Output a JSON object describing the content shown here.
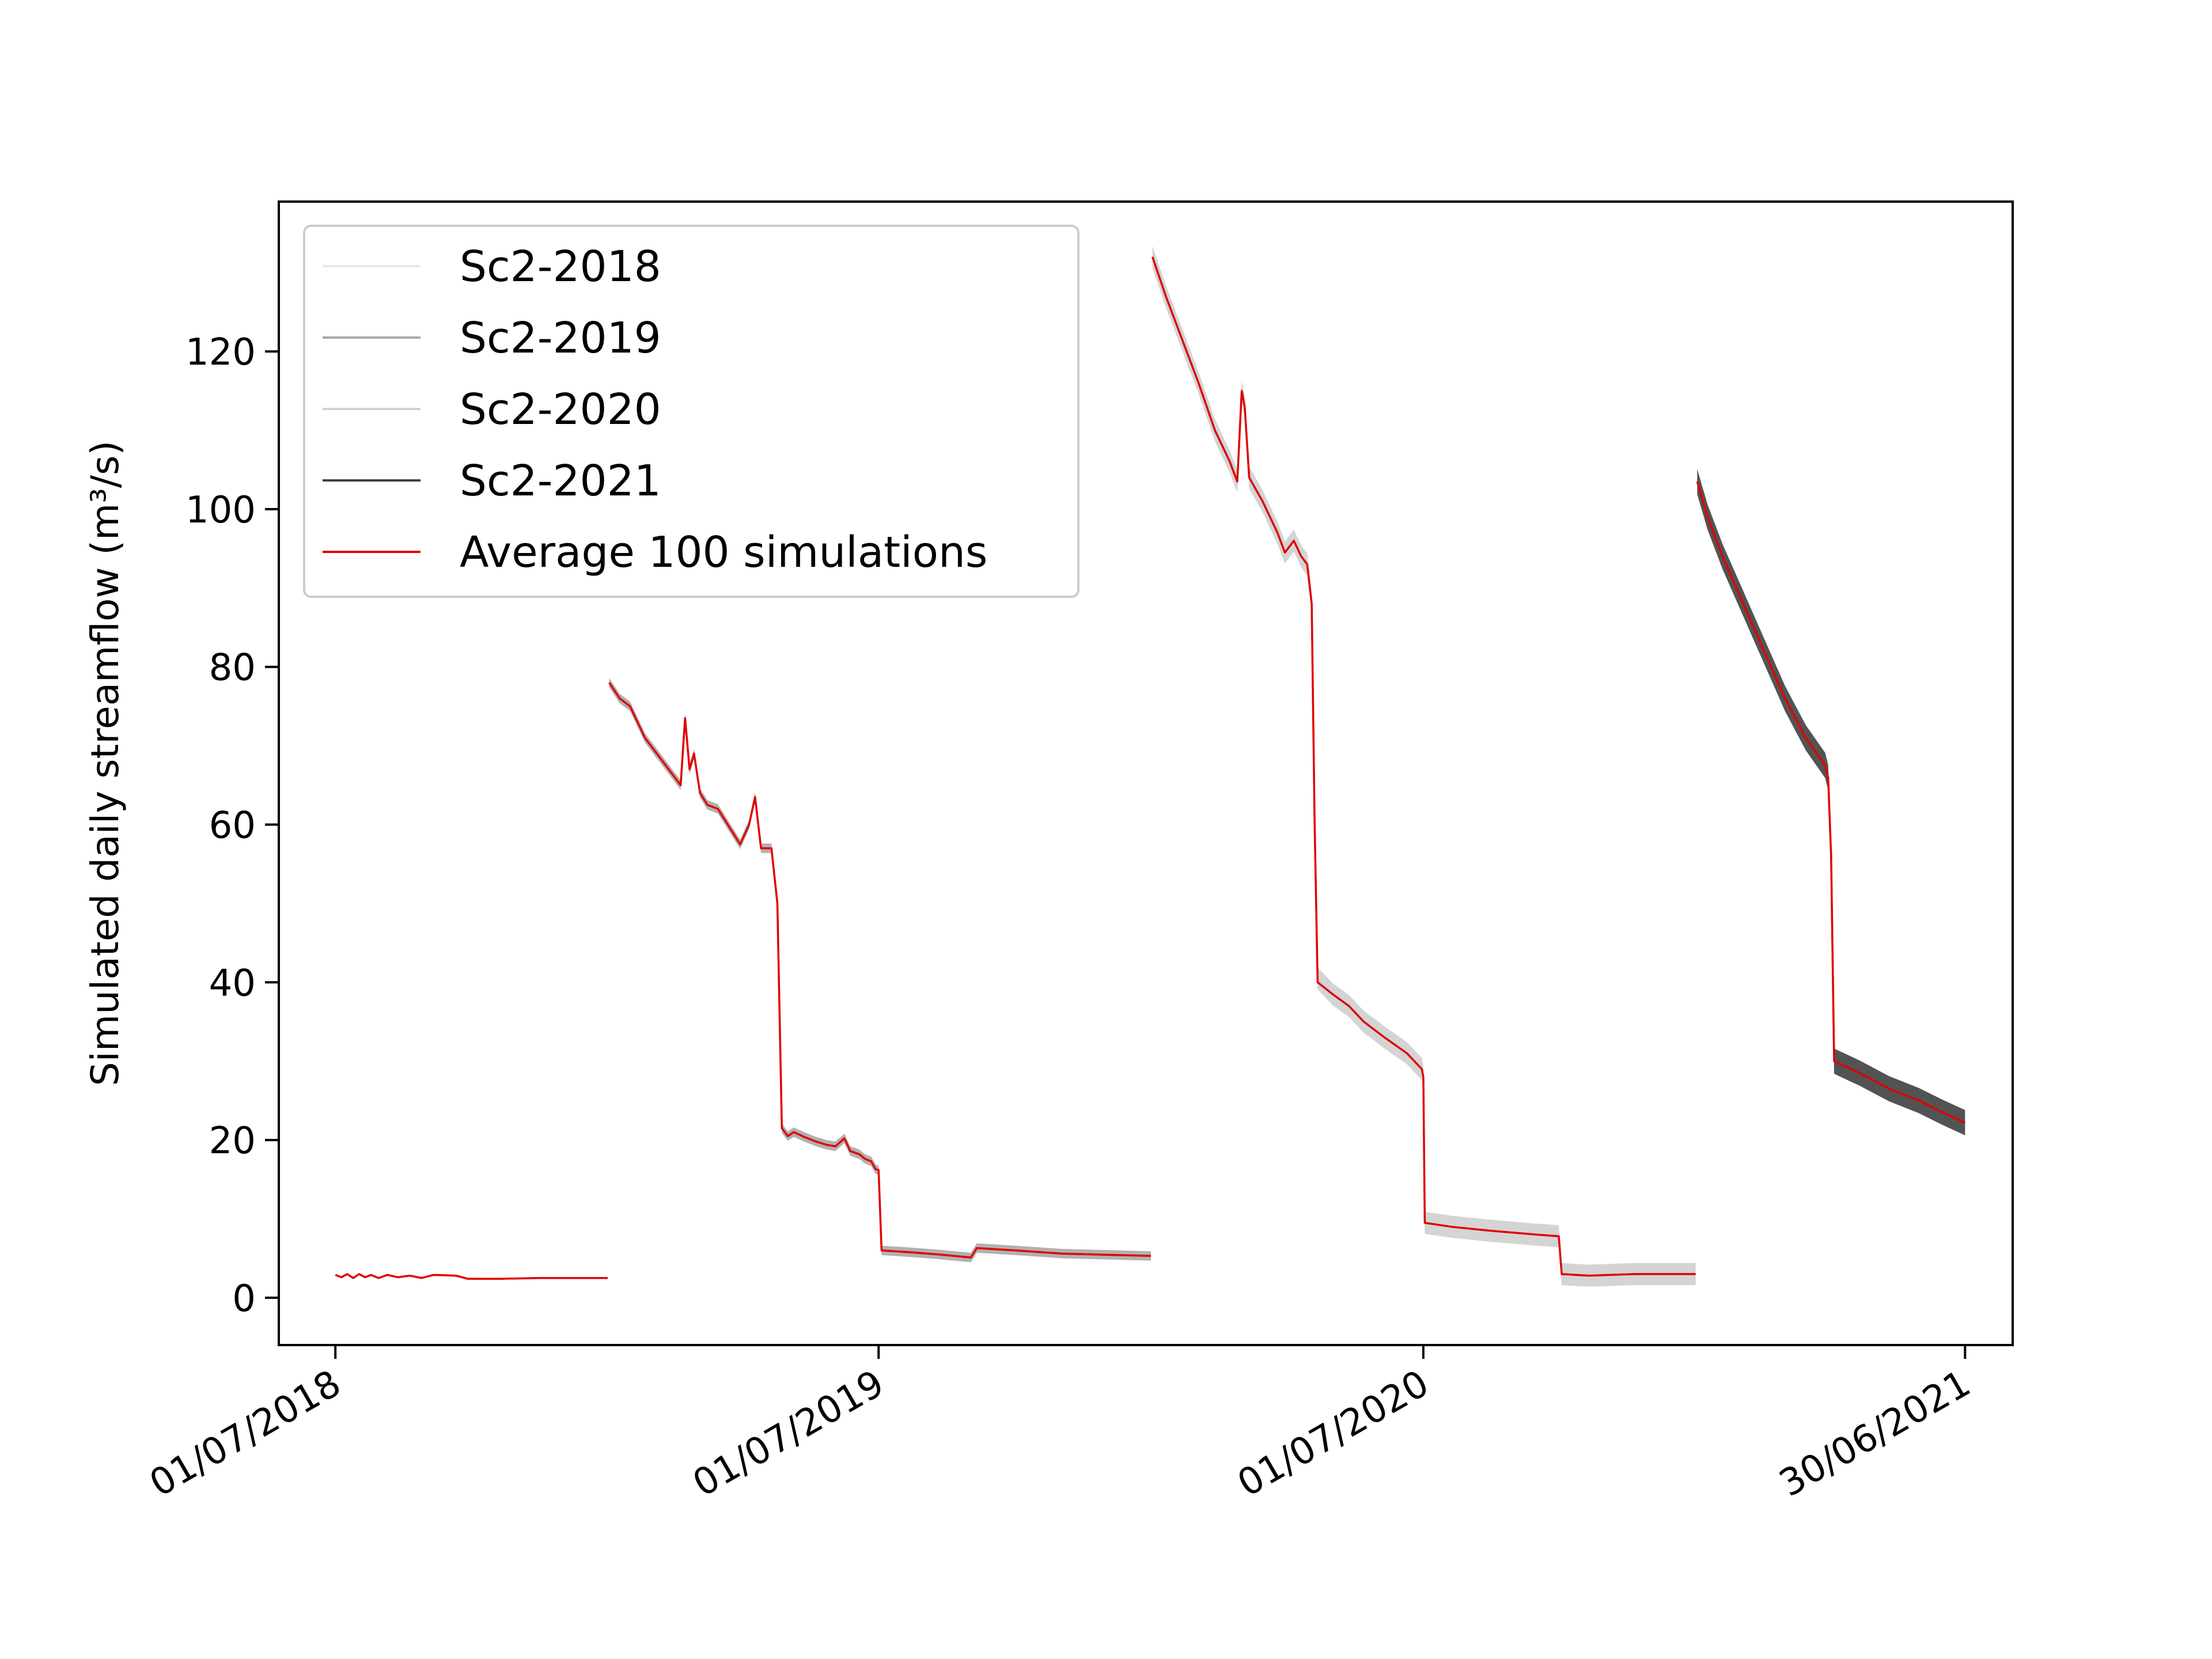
{
  "chart_data": {
    "type": "line",
    "title": "",
    "xlabel": "",
    "ylabel": "Simulated daily streamflow (m³/s)",
    "xlim": [
      "2018-05-24",
      "2021-08-01"
    ],
    "ylim": [
      -6,
      139
    ],
    "x_ticks": [
      {
        "date": "2018-07-01",
        "label": "01/07/2018"
      },
      {
        "date": "2019-07-01",
        "label": "01/07/2019"
      },
      {
        "date": "2020-07-01",
        "label": "01/07/2020"
      },
      {
        "date": "2021-06-30",
        "label": "30/06/2021"
      }
    ],
    "y_ticks": [
      0,
      20,
      40,
      60,
      80,
      100,
      120
    ],
    "grid": false,
    "legend": {
      "position": "top-left",
      "entries": [
        {
          "label": "Sc2-2018",
          "color": "#e8e8e8"
        },
        {
          "label": "Sc2-2019",
          "color": "#a8a8a8"
        },
        {
          "label": "Sc2-2020",
          "color": "#cfcfcf"
        },
        {
          "label": "Sc2-2021",
          "color": "#404040"
        },
        {
          "label": "Average 100 simulations",
          "color": "#e00000"
        }
      ]
    },
    "series": [
      {
        "name": "Sc2-2018",
        "color": "#e8e8e8",
        "band": 0,
        "points": [
          [
            "2018-07-01",
            2.9
          ],
          [
            "2018-07-05",
            2.6
          ],
          [
            "2018-07-09",
            3.0
          ],
          [
            "2018-07-13",
            2.5
          ],
          [
            "2018-07-17",
            3.0
          ],
          [
            "2018-07-21",
            2.6
          ],
          [
            "2018-07-25",
            2.9
          ],
          [
            "2018-07-30",
            2.5
          ],
          [
            "2018-08-05",
            2.9
          ],
          [
            "2018-08-12",
            2.6
          ],
          [
            "2018-08-20",
            2.8
          ],
          [
            "2018-08-28",
            2.5
          ],
          [
            "2018-09-05",
            2.9
          ],
          [
            "2018-09-20",
            2.8
          ],
          [
            "2018-09-28",
            2.4
          ],
          [
            "2018-10-20",
            2.4
          ],
          [
            "2018-11-15",
            2.5
          ],
          [
            "2018-12-31",
            2.5
          ]
        ]
      },
      {
        "name": "Sc2-2019",
        "color": "#a8a8a8",
        "band": 0.6,
        "points": [
          [
            "2019-01-01",
            78
          ],
          [
            "2019-01-08",
            76
          ],
          [
            "2019-01-15",
            75
          ],
          [
            "2019-01-25",
            71
          ],
          [
            "2019-02-10",
            67
          ],
          [
            "2019-02-18",
            65
          ],
          [
            "2019-02-21",
            73.5
          ],
          [
            "2019-02-24",
            67
          ],
          [
            "2019-02-27",
            69
          ],
          [
            "2019-03-03",
            64
          ],
          [
            "2019-03-08",
            62.5
          ],
          [
            "2019-03-15",
            62
          ],
          [
            "2019-03-25",
            59
          ],
          [
            "2019-03-30",
            57.5
          ],
          [
            "2019-04-05",
            60
          ],
          [
            "2019-04-09",
            63.5
          ],
          [
            "2019-04-13",
            57
          ],
          [
            "2019-04-20",
            57
          ],
          [
            "2019-04-24",
            50
          ],
          [
            "2019-04-27",
            21.5
          ],
          [
            "2019-05-01",
            20.5
          ],
          [
            "2019-05-05",
            21
          ],
          [
            "2019-05-12",
            20.4
          ],
          [
            "2019-05-20",
            19.8
          ],
          [
            "2019-05-27",
            19.4
          ],
          [
            "2019-06-02",
            19.2
          ],
          [
            "2019-06-08",
            20.2
          ],
          [
            "2019-06-12",
            18.6
          ],
          [
            "2019-06-18",
            18.2
          ],
          [
            "2019-06-22",
            17.6
          ],
          [
            "2019-06-26",
            17.3
          ],
          [
            "2019-06-29",
            16.3
          ],
          [
            "2019-07-01",
            16.2
          ],
          [
            "2019-07-03",
            6.0
          ],
          [
            "2019-07-20",
            5.8
          ],
          [
            "2019-08-10",
            5.5
          ],
          [
            "2019-09-01",
            5.1
          ],
          [
            "2019-09-05",
            6.3
          ],
          [
            "2019-10-01",
            6.0
          ],
          [
            "2019-11-01",
            5.6
          ],
          [
            "2019-12-31",
            5.3
          ]
        ]
      },
      {
        "name": "Sc2-2020",
        "color": "#cfcfcf",
        "band": 1.4,
        "points": [
          [
            "2020-01-01",
            132
          ],
          [
            "2020-01-10",
            127
          ],
          [
            "2020-01-20",
            122
          ],
          [
            "2020-02-01",
            116
          ],
          [
            "2020-02-12",
            110
          ],
          [
            "2020-02-22",
            106
          ],
          [
            "2020-02-27",
            103.5
          ],
          [
            "2020-03-01",
            115
          ],
          [
            "2020-03-03",
            113
          ],
          [
            "2020-03-06",
            104
          ],
          [
            "2020-03-15",
            101
          ],
          [
            "2020-03-25",
            97
          ],
          [
            "2020-03-30",
            94.5
          ],
          [
            "2020-04-05",
            96
          ],
          [
            "2020-04-10",
            94
          ],
          [
            "2020-04-14",
            93
          ],
          [
            "2020-04-17",
            88
          ],
          [
            "2020-04-19",
            60
          ],
          [
            "2020-04-21",
            40.5
          ],
          [
            "2020-05-01",
            38.5
          ],
          [
            "2020-05-12",
            37
          ],
          [
            "2020-05-22",
            35
          ],
          [
            "2020-06-05",
            33
          ],
          [
            "2020-06-20",
            31
          ],
          [
            "2020-06-30",
            29
          ],
          [
            "2020-07-01",
            28
          ],
          [
            "2020-07-02",
            9.5
          ],
          [
            "2020-07-20",
            9.0
          ],
          [
            "2020-08-15",
            8.5
          ],
          [
            "2020-09-15",
            8.0
          ],
          [
            "2020-09-30",
            7.8
          ],
          [
            "2020-10-02",
            3.0
          ],
          [
            "2020-10-20",
            2.8
          ],
          [
            "2020-11-20",
            3.0
          ],
          [
            "2020-12-31",
            3.0
          ]
        ]
      },
      {
        "name": "Sc2-2021",
        "color": "#404040",
        "band": 1.6,
        "points": [
          [
            "2021-01-01",
            103.5
          ],
          [
            "2021-01-08",
            99
          ],
          [
            "2021-01-18",
            94
          ],
          [
            "2021-02-01",
            88
          ],
          [
            "2021-02-15",
            82
          ],
          [
            "2021-03-01",
            76
          ],
          [
            "2021-03-15",
            71
          ],
          [
            "2021-03-28",
            67.5
          ],
          [
            "2021-03-30",
            66
          ],
          [
            "2021-04-01",
            56
          ],
          [
            "2021-04-03",
            30
          ],
          [
            "2021-04-20",
            28.5
          ],
          [
            "2021-05-10",
            26.5
          ],
          [
            "2021-05-30",
            25
          ],
          [
            "2021-06-15",
            23.5
          ],
          [
            "2021-06-30",
            22.2
          ]
        ]
      },
      {
        "name": "Average 100 simulations",
        "color": "#e00000",
        "band": 0,
        "points": [
          [
            "2018-07-01",
            2.9
          ],
          [
            "2018-07-05",
            2.6
          ],
          [
            "2018-07-09",
            3.0
          ],
          [
            "2018-07-13",
            2.5
          ],
          [
            "2018-07-17",
            3.0
          ],
          [
            "2018-07-21",
            2.6
          ],
          [
            "2018-07-25",
            2.9
          ],
          [
            "2018-07-30",
            2.5
          ],
          [
            "2018-08-05",
            2.9
          ],
          [
            "2018-08-12",
            2.6
          ],
          [
            "2018-08-20",
            2.8
          ],
          [
            "2018-08-28",
            2.5
          ],
          [
            "2018-09-05",
            2.9
          ],
          [
            "2018-09-20",
            2.8
          ],
          [
            "2018-09-28",
            2.4
          ],
          [
            "2018-10-20",
            2.4
          ],
          [
            "2018-11-15",
            2.5
          ],
          [
            "2018-12-31",
            2.5
          ],
          [
            null,
            null
          ],
          [
            "2019-01-01",
            78
          ],
          [
            "2019-01-08",
            76
          ],
          [
            "2019-01-15",
            75
          ],
          [
            "2019-01-25",
            71
          ],
          [
            "2019-02-10",
            67
          ],
          [
            "2019-02-18",
            65
          ],
          [
            "2019-02-21",
            73.5
          ],
          [
            "2019-02-24",
            67
          ],
          [
            "2019-02-27",
            69
          ],
          [
            "2019-03-03",
            64
          ],
          [
            "2019-03-08",
            62.5
          ],
          [
            "2019-03-15",
            62
          ],
          [
            "2019-03-25",
            59
          ],
          [
            "2019-03-30",
            57.5
          ],
          [
            "2019-04-05",
            60
          ],
          [
            "2019-04-09",
            63.5
          ],
          [
            "2019-04-13",
            57
          ],
          [
            "2019-04-20",
            57
          ],
          [
            "2019-04-24",
            50
          ],
          [
            "2019-04-27",
            21.5
          ],
          [
            "2019-05-01",
            20.5
          ],
          [
            "2019-05-05",
            21
          ],
          [
            "2019-05-12",
            20.4
          ],
          [
            "2019-05-20",
            19.8
          ],
          [
            "2019-05-27",
            19.4
          ],
          [
            "2019-06-02",
            19.2
          ],
          [
            "2019-06-08",
            20.2
          ],
          [
            "2019-06-12",
            18.6
          ],
          [
            "2019-06-18",
            18.2
          ],
          [
            "2019-06-22",
            17.6
          ],
          [
            "2019-06-26",
            17.3
          ],
          [
            "2019-06-29",
            16.3
          ],
          [
            "2019-07-01",
            16.2
          ],
          [
            "2019-07-03",
            6.0
          ],
          [
            "2019-07-20",
            5.8
          ],
          [
            "2019-08-10",
            5.5
          ],
          [
            "2019-09-01",
            5.1
          ],
          [
            "2019-09-05",
            6.3
          ],
          [
            "2019-10-01",
            6.0
          ],
          [
            "2019-11-01",
            5.6
          ],
          [
            "2019-12-31",
            5.3
          ],
          [
            null,
            null
          ],
          [
            "2020-01-01",
            132
          ],
          [
            "2020-01-10",
            127
          ],
          [
            "2020-01-20",
            122
          ],
          [
            "2020-02-01",
            116
          ],
          [
            "2020-02-12",
            110
          ],
          [
            "2020-02-22",
            106
          ],
          [
            "2020-02-27",
            103.5
          ],
          [
            "2020-03-01",
            115
          ],
          [
            "2020-03-03",
            113
          ],
          [
            "2020-03-06",
            104
          ],
          [
            "2020-03-15",
            101
          ],
          [
            "2020-03-25",
            97
          ],
          [
            "2020-03-30",
            94.5
          ],
          [
            "2020-04-05",
            96
          ],
          [
            "2020-04-10",
            94
          ],
          [
            "2020-04-14",
            93
          ],
          [
            "2020-04-17",
            88
          ],
          [
            "2020-04-19",
            60
          ],
          [
            "2020-04-21",
            40
          ],
          [
            "2020-05-01",
            38.5
          ],
          [
            "2020-05-12",
            37
          ],
          [
            "2020-05-22",
            35
          ],
          [
            "2020-06-05",
            33
          ],
          [
            "2020-06-20",
            31
          ],
          [
            "2020-06-30",
            29
          ],
          [
            "2020-07-01",
            28
          ],
          [
            "2020-07-02",
            9.5
          ],
          [
            "2020-07-20",
            9.0
          ],
          [
            "2020-08-15",
            8.5
          ],
          [
            "2020-09-15",
            8.0
          ],
          [
            "2020-09-30",
            7.8
          ],
          [
            "2020-10-02",
            3.0
          ],
          [
            "2020-10-20",
            2.8
          ],
          [
            "2020-11-20",
            3.0
          ],
          [
            "2020-12-31",
            3.0
          ],
          [
            null,
            null
          ],
          [
            "2021-01-01",
            103.5
          ],
          [
            "2021-01-08",
            99
          ],
          [
            "2021-01-18",
            94
          ],
          [
            "2021-02-01",
            88
          ],
          [
            "2021-02-15",
            82
          ],
          [
            "2021-03-01",
            76
          ],
          [
            "2021-03-15",
            71
          ],
          [
            "2021-03-28",
            67.5
          ],
          [
            "2021-03-30",
            66
          ],
          [
            "2021-04-01",
            56
          ],
          [
            "2021-04-03",
            30
          ],
          [
            "2021-04-20",
            28.5
          ],
          [
            "2021-05-10",
            26.5
          ],
          [
            "2021-05-30",
            25
          ],
          [
            "2021-06-15",
            23.5
          ],
          [
            "2021-06-30",
            22.2
          ]
        ]
      }
    ]
  }
}
